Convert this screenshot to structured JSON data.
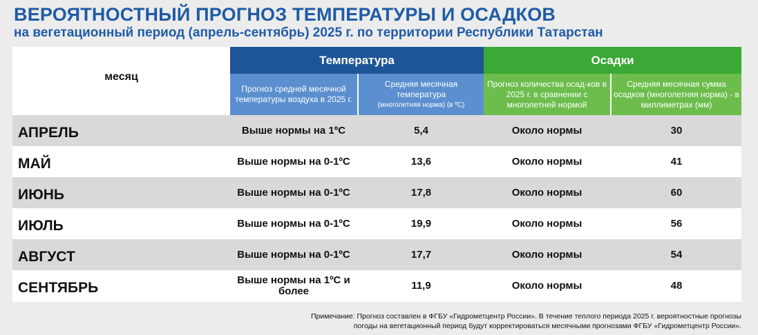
{
  "title": "ВЕРОЯТНОСТНЫЙ  ПРОГНОЗ  ТЕМПЕРАТУРЫ И ОСАДКОВ",
  "subtitle": "на вегетационный  период  (апрель-сентябрь) 2025 г. по территории Республики Татарстан",
  "colors": {
    "title": "#1f5ba6",
    "temp_band": "#1e5597",
    "temp_sub": "#5b8fcf",
    "precip_band": "#3aa935",
    "precip_sub": "#6cbd4c",
    "row_alt": "#d9d9d9"
  },
  "header": {
    "month": "месяц",
    "temperature": "Температура",
    "precipitation": "Осадки",
    "temp_forecast": "Прогноз средней месячной температуры воздуха в 2025 г.",
    "temp_norm": "Средняя месячная температура",
    "temp_norm_small": "(многолетняя норма) (в ºС)",
    "precip_forecast": "Прогноз количества осад-ков в 2025 г. в сравнении с многолетней нормой",
    "precip_norm": "Средняя месячная сумма осадков (многолетняя норма) - в миллиметрах (мм)"
  },
  "rows": [
    {
      "month": "АПРЕЛЬ",
      "temp_forecast": "Выше нормы на 1ºС",
      "temp_norm": "5,4",
      "precip_forecast": "Около нормы",
      "precip_norm": "30"
    },
    {
      "month": "МАЙ",
      "temp_forecast": "Выше нормы на 0-1ºС",
      "temp_norm": "13,6",
      "precip_forecast": "Около нормы",
      "precip_norm": "41"
    },
    {
      "month": "ИЮНЬ",
      "temp_forecast": "Выше нормы на 0-1ºС",
      "temp_norm": "17,8",
      "precip_forecast": "Около нормы",
      "precip_norm": "60"
    },
    {
      "month": "ИЮЛЬ",
      "temp_forecast": "Выше нормы на 0-1ºС",
      "temp_norm": "19,9",
      "precip_forecast": "Около нормы",
      "precip_norm": "56"
    },
    {
      "month": "АВГУСТ",
      "temp_forecast": "Выше нормы на 0-1ºС",
      "temp_norm": "17,7",
      "precip_forecast": "Около нормы",
      "precip_norm": "54"
    },
    {
      "month": "СЕНТЯБРЬ",
      "temp_forecast": "Выше нормы на 1ºС и более",
      "temp_norm": "11,9",
      "precip_forecast": "Около нормы",
      "precip_norm": "48"
    }
  ],
  "note_line1": "Примечание: Прогноз составлен в ФГБУ «Гидрометцентр России». В течение теплого периода 2025 г. вероятностные прогнозы",
  "note_line2": "погоды на вегетационный период будут корректироваться месячными прогнозами ФГБУ «Гидрометцентр России»."
}
